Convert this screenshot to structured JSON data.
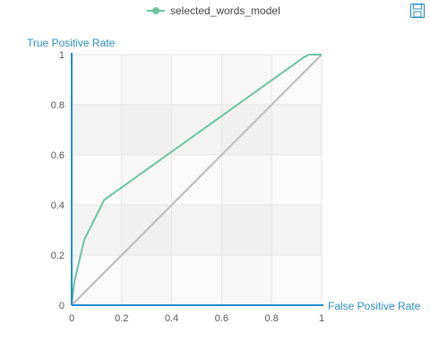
{
  "toolbar": {
    "save_icon": "save-icon"
  },
  "colors": {
    "series": "#6cc4a0",
    "diagonal": "#bbbbbb",
    "axis": "#1f8fcf",
    "label": "#2b8fc4"
  },
  "chart_data": {
    "type": "line",
    "title": "",
    "xlabel": "False Positive Rate",
    "ylabel": "True Positive Rate",
    "xlim": [
      0,
      1
    ],
    "ylim": [
      0,
      1
    ],
    "xticks": [
      0,
      0.2,
      0.4,
      0.6,
      0.8,
      1
    ],
    "xtick_labels": [
      "0",
      "0.2",
      "0.4",
      "0.6",
      "0.8",
      "1"
    ],
    "yticks": [
      0,
      0.2,
      0.4,
      0.6,
      0.8,
      1
    ],
    "ytick_labels": [
      "0",
      "0.2",
      "0.4",
      "0.6",
      "0.8",
      "1"
    ],
    "grid": true,
    "legend_position": "top",
    "series": [
      {
        "name": "selected_words_model",
        "x": [
          0,
          0.01,
          0.05,
          0.13,
          0.93,
          0.95,
          1.0
        ],
        "y": [
          0,
          0.09,
          0.26,
          0.42,
          0.99,
          1.0,
          1.0
        ]
      }
    ],
    "reference_line": {
      "x": [
        0,
        1
      ],
      "y": [
        0,
        1
      ]
    }
  }
}
